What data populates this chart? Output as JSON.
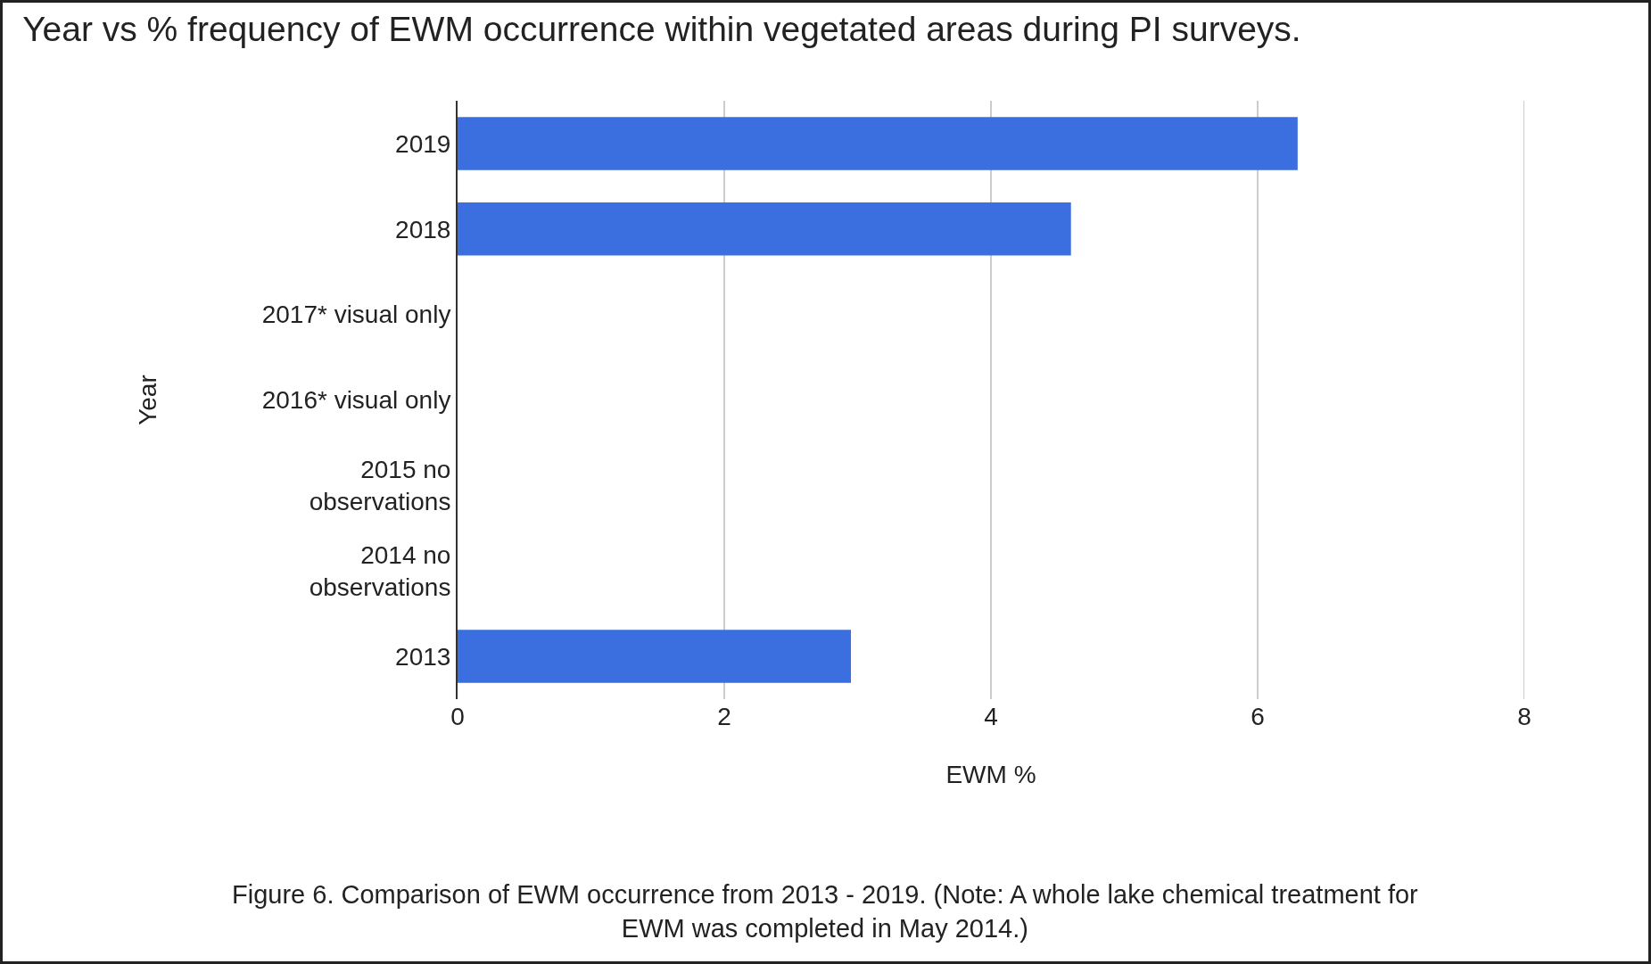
{
  "chart_data": {
    "type": "bar",
    "orientation": "horizontal",
    "title": "Year vs % frequency of EWM occurrence within vegetated areas during PI surveys.",
    "xlabel": "EWM %",
    "ylabel": "Year",
    "categories": [
      "2019",
      "2018",
      "2017* visual only",
      "2016* visual only",
      "2015 no observations",
      "2014 no observations",
      "2013"
    ],
    "values": [
      6.3,
      4.6,
      null,
      null,
      null,
      null,
      2.95
    ],
    "color": "#3b6fe0",
    "xlim": [
      0,
      8
    ],
    "xticks": [
      0,
      2,
      4,
      6,
      8
    ],
    "grid": "x",
    "annotations": [
      "Figure 6. Comparison of EWM occurrence from 2013 - 2019. (Note: A whole lake chemical treatment for EWM was completed in May 2014.)"
    ]
  }
}
